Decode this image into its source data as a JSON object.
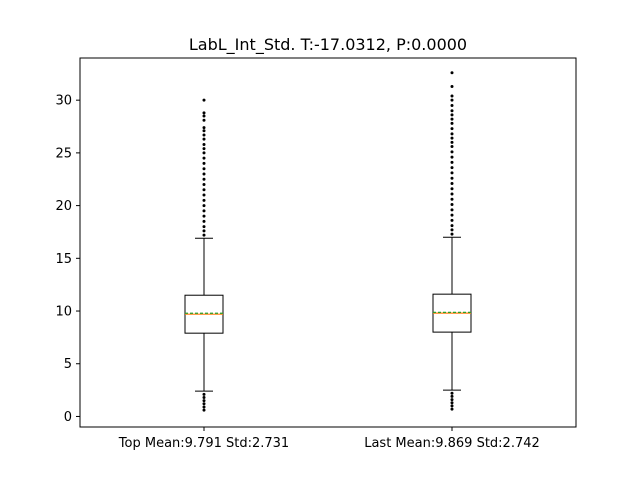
{
  "chart_data": {
    "type": "boxplot",
    "title": "LabL_Int_Std. T:-17.0312, P:0.0000",
    "xlabel": "",
    "ylabel": "",
    "ylim": [
      -1,
      34
    ],
    "yticks": [
      0,
      5,
      10,
      15,
      20,
      25,
      30
    ],
    "categories": [
      "Top Mean:9.791 Std:2.731",
      "Last Mean:9.869 Std:2.742"
    ],
    "boxes": [
      {
        "label": "Top Mean:9.791 Std:2.731",
        "whisker_low": 2.4,
        "q1": 7.9,
        "median": 9.7,
        "mean": 9.791,
        "q3": 11.5,
        "whisker_high": 16.9,
        "outliers_high": [
          17.2,
          17.6,
          18.0,
          18.5,
          19.0,
          19.5,
          20.0,
          20.5,
          21.0,
          21.5,
          22.0,
          22.5,
          23.0,
          23.5,
          24.0,
          24.5,
          25.0,
          25.4,
          25.8,
          26.3,
          26.7,
          27.1,
          27.4,
          28.1,
          28.5,
          28.8,
          30.0
        ],
        "outliers_low": [
          2.1,
          1.8,
          1.5,
          1.2,
          0.9,
          0.6
        ]
      },
      {
        "label": "Last Mean:9.869 Std:2.742",
        "whisker_low": 2.5,
        "q1": 8.0,
        "median": 9.8,
        "mean": 9.869,
        "q3": 11.6,
        "whisker_high": 17.0,
        "outliers_high": [
          17.3,
          17.7,
          18.1,
          18.6,
          19.1,
          19.6,
          20.1,
          20.6,
          21.1,
          21.6,
          22.1,
          22.6,
          23.1,
          23.6,
          24.1,
          24.6,
          25.1,
          25.6,
          26.0,
          26.4,
          26.8,
          27.3,
          27.8,
          28.2,
          28.6,
          29.0,
          29.5,
          30.0,
          30.4,
          31.3,
          32.6
        ],
        "outliers_low": [
          2.2,
          1.9,
          1.6,
          1.3,
          1.0,
          0.7
        ]
      }
    ],
    "colors": {
      "box": "#000000",
      "median": "#ff7f0e",
      "mean": "#2ca02c"
    }
  }
}
